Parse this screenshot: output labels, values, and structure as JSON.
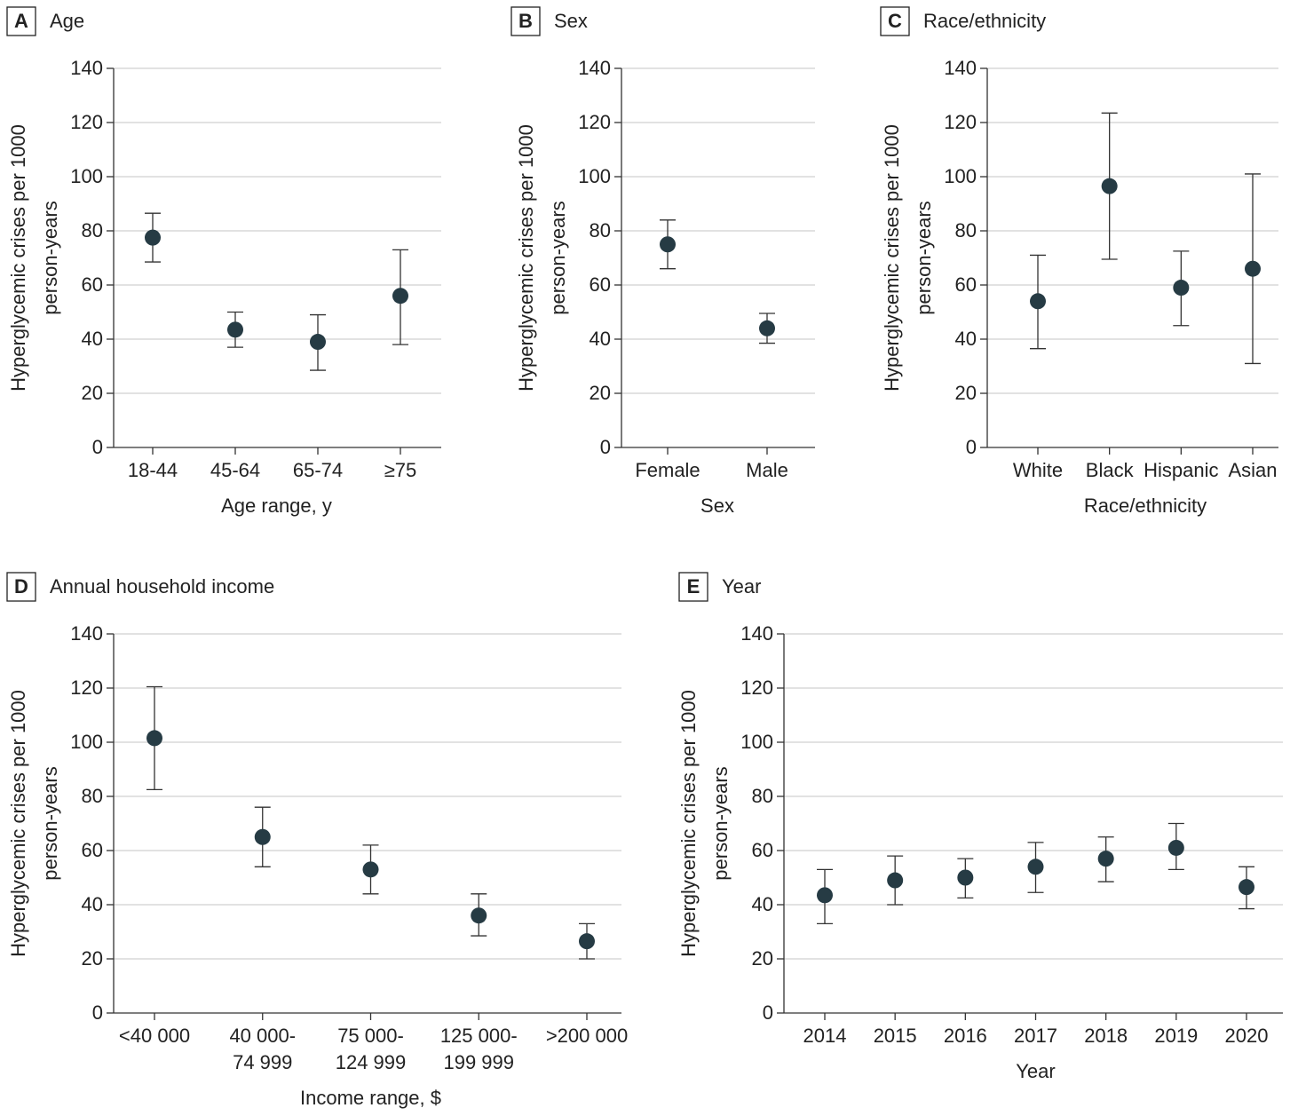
{
  "chart_data": [
    {
      "type": "errorbar",
      "panel": "A",
      "title": "Age",
      "xlabel": "Age range, y",
      "ylabel": [
        "Hyperglycemic crises per 1000",
        "person-years"
      ],
      "categories": [
        "18-44",
        "45-64",
        "65-74",
        "≥75"
      ],
      "values": [
        77.5,
        43.5,
        39,
        56
      ],
      "lower": [
        68.5,
        37,
        28.5,
        38
      ],
      "upper": [
        86.5,
        50,
        49,
        73
      ],
      "color": "#263b44",
      "ylim": [
        0,
        140
      ],
      "yticks": [
        0,
        20,
        40,
        60,
        80,
        100,
        120,
        140
      ],
      "grid": true
    },
    {
      "type": "errorbar",
      "panel": "B",
      "title": "Sex",
      "xlabel": "Sex",
      "ylabel": [
        "Hyperglycemic crises per 1000",
        "person-years"
      ],
      "categories": [
        "Female",
        "Male"
      ],
      "values": [
        75,
        44
      ],
      "lower": [
        66,
        38.5
      ],
      "upper": [
        84,
        49.5
      ],
      "color": "#263b44",
      "ylim": [
        0,
        140
      ],
      "yticks": [
        0,
        20,
        40,
        60,
        80,
        100,
        120,
        140
      ],
      "grid": true
    },
    {
      "type": "errorbar",
      "panel": "C",
      "title": "Race/ethnicity",
      "xlabel": "Race/ethnicity",
      "ylabel": [
        "Hyperglycemic crises per 1000",
        "person-years"
      ],
      "categories": [
        "White",
        "Black",
        "Hispanic",
        "Asian"
      ],
      "values": [
        54,
        96.5,
        59,
        66
      ],
      "lower": [
        36.5,
        69.5,
        45,
        31
      ],
      "upper": [
        71,
        123.5,
        72.5,
        101
      ],
      "color": "#263b44",
      "ylim": [
        0,
        140
      ],
      "yticks": [
        0,
        20,
        40,
        60,
        80,
        100,
        120,
        140
      ],
      "grid": true
    },
    {
      "type": "errorbar",
      "panel": "D",
      "title": "Annual household income",
      "xlabel": "Income range, $",
      "ylabel": [
        "Hyperglycemic crises per 1000",
        "person-years"
      ],
      "categories": [
        "<40 000",
        "40 000-\n74 999",
        "75 000-\n124 999",
        "125 000-\n199 999",
        ">200 000"
      ],
      "values": [
        101.5,
        65,
        53,
        36,
        26.5
      ],
      "lower": [
        82.5,
        54,
        44,
        28.5,
        20
      ],
      "upper": [
        120.5,
        76,
        62,
        44,
        33
      ],
      "color": "#263b44",
      "ylim": [
        0,
        140
      ],
      "yticks": [
        0,
        20,
        40,
        60,
        80,
        100,
        120,
        140
      ],
      "grid": true
    },
    {
      "type": "errorbar",
      "panel": "E",
      "title": "Year",
      "xlabel": "Year",
      "ylabel": [
        "Hyperglycemic crises per 1000",
        "person-years"
      ],
      "categories": [
        "2014",
        "2015",
        "2016",
        "2017",
        "2018",
        "2019",
        "2020"
      ],
      "values": [
        43.5,
        49,
        50,
        54,
        57,
        61,
        46.5
      ],
      "lower": [
        33,
        40,
        42.5,
        44.5,
        48.5,
        53,
        38.5
      ],
      "upper": [
        53,
        58,
        57,
        63,
        65,
        70,
        54
      ],
      "color": "#263b44",
      "ylim": [
        0,
        140
      ],
      "yticks": [
        0,
        20,
        40,
        60,
        80,
        100,
        120,
        140
      ],
      "grid": true
    }
  ]
}
